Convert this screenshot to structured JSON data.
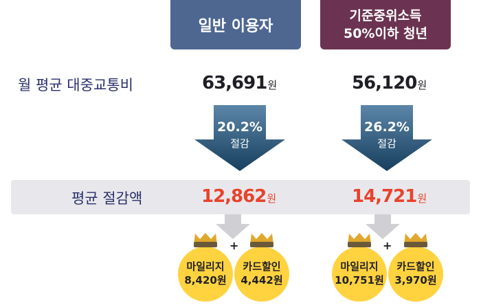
{
  "header": {
    "col1": "일반 이용자",
    "col2_line1": "기준중위소득",
    "col2_line2": "50%이하 청년"
  },
  "rows": {
    "monthly_label": "월 평균 대중교통비",
    "saving_label": "평균 절감액"
  },
  "columns": [
    {
      "monthly_value": "63,691",
      "unit": "원",
      "savings_rate": "20.2%",
      "savings_word": "절감",
      "avg_saving": "12,862",
      "mileage_label": "마일리지",
      "mileage_value": "8,420원",
      "card_label": "카드할인",
      "card_value": "4,442원"
    },
    {
      "monthly_value": "56,120",
      "unit": "원",
      "savings_rate": "26.2%",
      "savings_word": "절감",
      "avg_saving": "14,721",
      "mileage_label": "마일리지",
      "mileage_value": "10,751원",
      "card_label": "카드할인",
      "card_value": "3,970원"
    }
  ],
  "plus_sign": "+",
  "colors": {
    "header1": "#4e6791",
    "header2": "#6b3351",
    "arrow": "#1f4e6e",
    "highlight": "#e8432c",
    "coin": "#ffd23f",
    "coin_tie": "#c9962a"
  }
}
